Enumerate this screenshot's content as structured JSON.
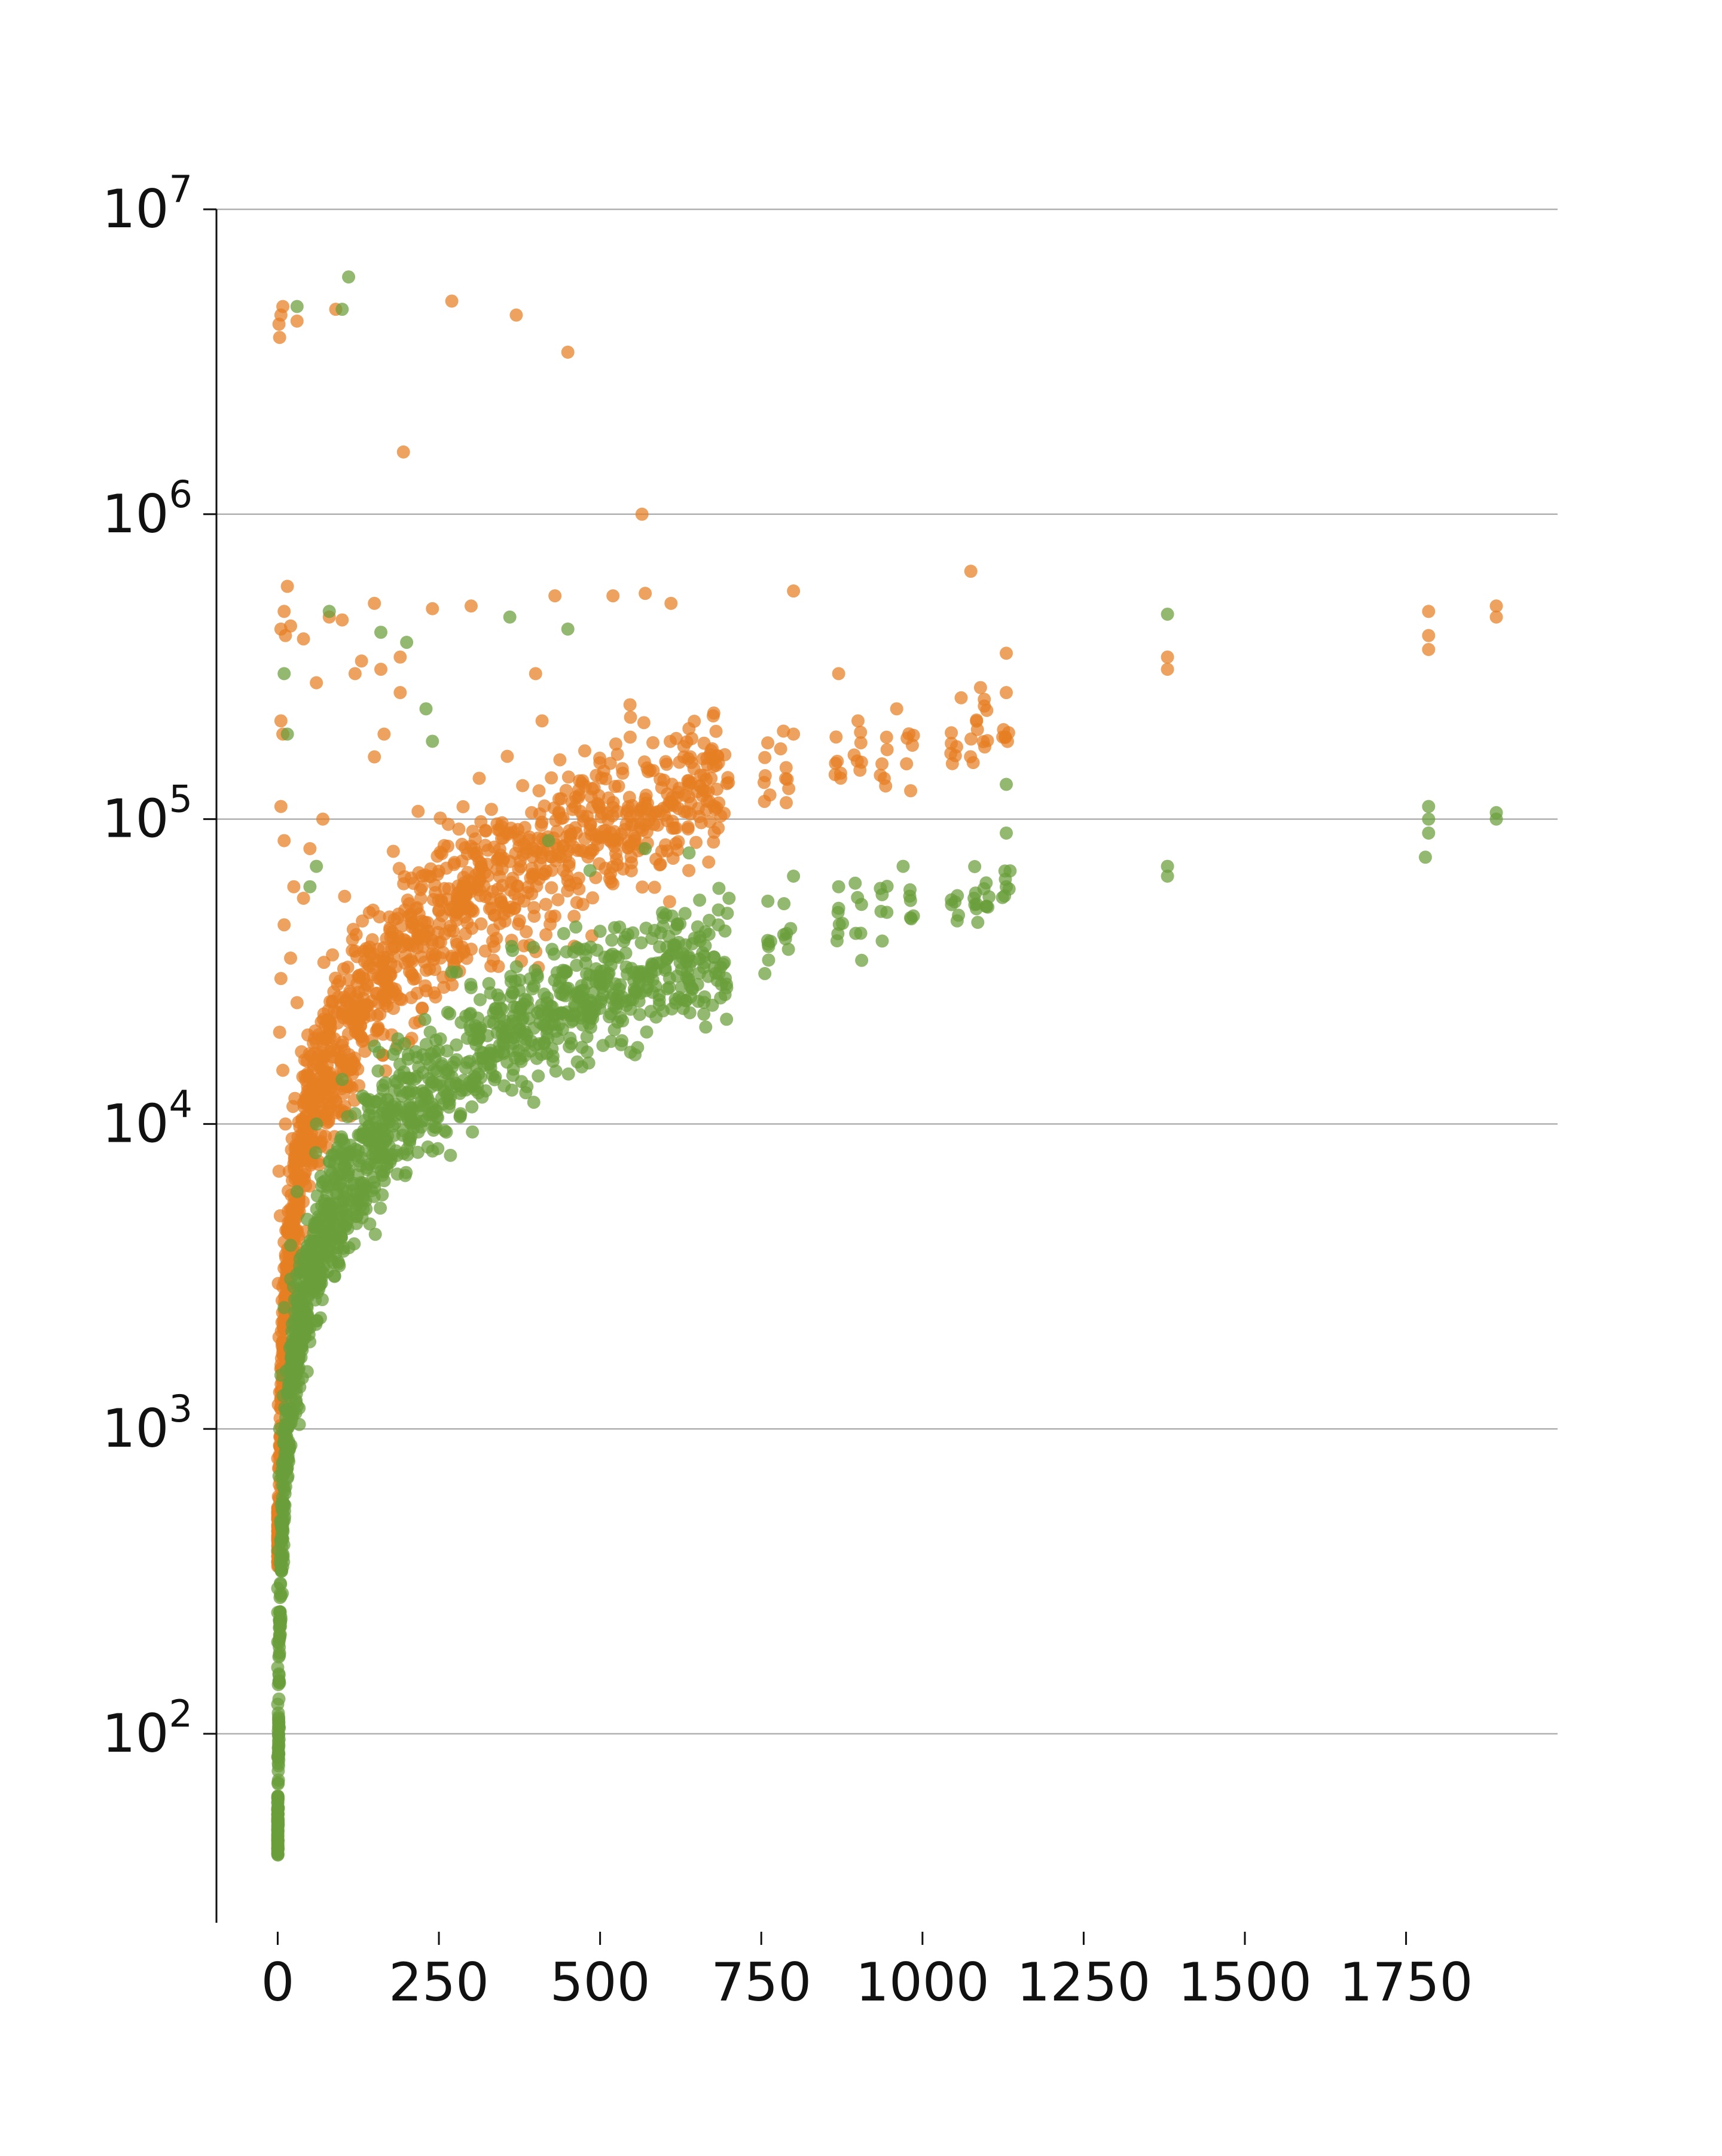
{
  "chart_data": {
    "type": "scatter",
    "title": "",
    "xlabel": "",
    "ylabel": "",
    "x_scale": "linear",
    "y_scale": "log",
    "xlim": [
      -95,
      1985
    ],
    "ylim": [
      24,
      10000000
    ],
    "grid": "horizontal",
    "legend": "none",
    "x_ticks": [
      {
        "value": 0,
        "label": "0"
      },
      {
        "value": 250,
        "label": "250"
      },
      {
        "value": 500,
        "label": "500"
      },
      {
        "value": 750,
        "label": "750"
      },
      {
        "value": 1000,
        "label": "1000"
      },
      {
        "value": 1250,
        "label": "1250"
      },
      {
        "value": 1500,
        "label": "1500"
      },
      {
        "value": 1750,
        "label": "1750"
      }
    ],
    "y_ticks": [
      {
        "value": 100,
        "base": "10",
        "exponent": "2"
      },
      {
        "value": 1000,
        "base": "10",
        "exponent": "3"
      },
      {
        "value": 10000,
        "base": "10",
        "exponent": "4"
      },
      {
        "value": 100000,
        "base": "10",
        "exponent": "5"
      },
      {
        "value": 1000000,
        "base": "10",
        "exponent": "6"
      },
      {
        "value": 10000000,
        "base": "10",
        "exponent": "7"
      }
    ],
    "series": [
      {
        "color": "#E67E22",
        "trend": {
          "x_min": 0,
          "x_max": 1900,
          "x_ref": 500,
          "y_ref": 90000,
          "exponent": 0.95,
          "spread": 0.22,
          "min_y": 350
        },
        "points": [
          [
            2,
            4200000
          ],
          [
            5,
            4500000
          ],
          [
            8,
            4800000
          ],
          [
            3,
            3800000
          ],
          [
            30,
            4300000
          ],
          [
            90,
            4700000
          ],
          [
            270,
            5000000
          ],
          [
            370,
            4500000
          ],
          [
            450,
            3400000
          ],
          [
            195,
            1600000
          ],
          [
            565,
            1000000
          ],
          [
            1075,
            650000
          ],
          [
            15,
            580000
          ],
          [
            570,
            550000
          ],
          [
            10,
            480000
          ],
          [
            520,
            540000
          ],
          [
            800,
            560000
          ],
          [
            430,
            540000
          ],
          [
            610,
            510000
          ],
          [
            300,
            500000
          ],
          [
            240,
            490000
          ],
          [
            150,
            510000
          ],
          [
            80,
            460000
          ],
          [
            5,
            420000
          ],
          [
            12,
            400000
          ],
          [
            20,
            430000
          ],
          [
            40,
            390000
          ],
          [
            100,
            450000
          ],
          [
            130,
            330000
          ],
          [
            160,
            310000
          ],
          [
            400,
            300000
          ],
          [
            870,
            300000
          ],
          [
            1130,
            350000
          ],
          [
            1380,
            340000
          ],
          [
            1380,
            310000
          ],
          [
            1785,
            480000
          ],
          [
            1785,
            400000
          ],
          [
            1785,
            360000
          ],
          [
            1890,
            500000
          ],
          [
            1890,
            460000
          ],
          [
            60,
            280000
          ],
          [
            120,
            300000
          ],
          [
            190,
            340000
          ],
          [
            190,
            260000
          ],
          [
            150,
            160000
          ],
          [
            165,
            190000
          ],
          [
            5,
            210000
          ],
          [
            8,
            190000
          ],
          [
            410,
            210000
          ],
          [
            70,
            100000
          ],
          [
            5,
            110000
          ],
          [
            50,
            80000
          ],
          [
            10,
            85000
          ],
          [
            25,
            60000
          ],
          [
            40,
            55000
          ],
          [
            10,
            45000
          ],
          [
            20,
            35000
          ],
          [
            5,
            30000
          ],
          [
            30,
            25000
          ],
          [
            3,
            20000
          ],
          [
            8,
            15000
          ],
          [
            12,
            10000
          ],
          [
            2,
            7000
          ],
          [
            4,
            5000
          ],
          [
            1,
            3000
          ],
          [
            2,
            2000
          ],
          [
            1,
            1200
          ],
          [
            0,
            800
          ],
          [
            1,
            600
          ],
          [
            0,
            400
          ],
          [
            800,
            190000
          ],
          [
            780,
            170000
          ],
          [
            900,
            210000
          ],
          [
            960,
            230000
          ],
          [
            1060,
            250000
          ],
          [
            1090,
            270000
          ],
          [
            1130,
            260000
          ],
          [
            680,
            150000
          ],
          [
            640,
            160000
          ],
          [
            250,
            50000
          ]
        ]
      },
      {
        "color": "#6A9E3A",
        "trend": {
          "x_min": 0,
          "x_max": 1900,
          "x_ref": 500,
          "y_ref": 27000,
          "exponent": 0.95,
          "spread": 0.18,
          "min_y": 40
        },
        "points": [
          [
            110,
            6000000
          ],
          [
            100,
            4700000
          ],
          [
            30,
            4800000
          ],
          [
            360,
            460000
          ],
          [
            450,
            420000
          ],
          [
            1380,
            470000
          ],
          [
            230,
            230000
          ],
          [
            240,
            180000
          ],
          [
            10,
            300000
          ],
          [
            15,
            190000
          ],
          [
            80,
            480000
          ],
          [
            160,
            410000
          ],
          [
            200,
            380000
          ],
          [
            1130,
            130000
          ],
          [
            1130,
            90000
          ],
          [
            1785,
            110000
          ],
          [
            1785,
            100000
          ],
          [
            1785,
            90000
          ],
          [
            1780,
            75000
          ],
          [
            1890,
            100000
          ],
          [
            1890,
            105000
          ],
          [
            1380,
            70000
          ],
          [
            1380,
            65000
          ],
          [
            570,
            80000
          ],
          [
            420,
            85000
          ],
          [
            60,
            70000
          ],
          [
            50,
            60000
          ],
          [
            970,
            70000
          ],
          [
            870,
            60000
          ],
          [
            800,
            65000
          ],
          [
            700,
            55000
          ],
          [
            1080,
            55000
          ],
          [
            1130,
            60000
          ],
          [
            620,
            45000
          ],
          [
            760,
            40000
          ],
          [
            500,
            30000
          ],
          [
            300,
            28000
          ],
          [
            150,
            18000
          ],
          [
            100,
            14000
          ],
          [
            60,
            10000
          ],
          [
            30,
            6000
          ],
          [
            20,
            4000
          ],
          [
            10,
            2500
          ],
          [
            5,
            1500
          ],
          [
            3,
            1000
          ],
          [
            2,
            700
          ],
          [
            1,
            400
          ],
          [
            0,
            300
          ],
          [
            0,
            250
          ],
          [
            0,
            200
          ],
          [
            0,
            165
          ],
          [
            0,
            125
          ],
          [
            0,
            84
          ],
          [
            0,
            42
          ]
        ]
      }
    ]
  }
}
